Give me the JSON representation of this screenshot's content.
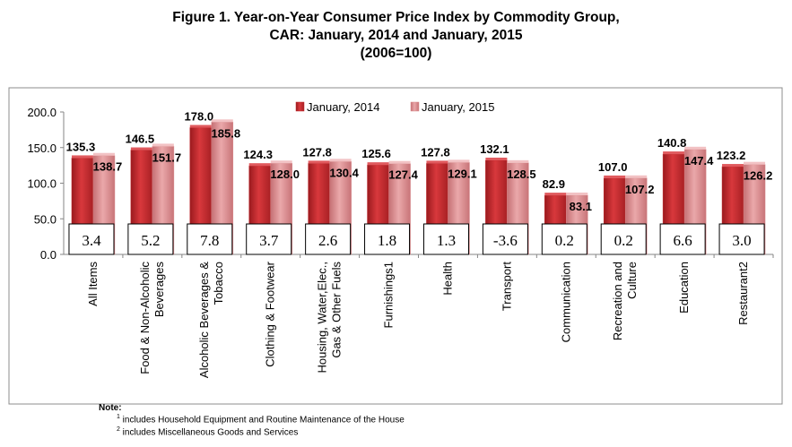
{
  "title_lines": [
    "Figure 1. Year-on-Year Consumer Price Index by Commodity Group,",
    "CAR: January, 2014 and January, 2015",
    "(2006=100)"
  ],
  "colors": {
    "series_2014": "#c0282c",
    "series_2015": "#d98a8c"
  },
  "chart_data": {
    "type": "bar",
    "title": "Figure 1. Year-on-Year Consumer Price Index by Commodity Group, CAR: January, 2014 and January, 2015 (2006=100)",
    "categories": [
      "All Items",
      "Food & Non-Alcoholic Beverages",
      "Alcoholic Beverages & Tobacco",
      "Clothing & Footwear",
      "Housing, Water,Elec., Gas & Other Fuels",
      "Furnishings1",
      "Health",
      "Transport",
      "Communication",
      "Recreation and Culture",
      "Education",
      "Restaurant2"
    ],
    "category_lines": [
      [
        "All Items"
      ],
      [
        "Food & Non-Alcoholic",
        "Beverages"
      ],
      [
        "Alcoholic Beverages &",
        "Tobacco"
      ],
      [
        "Clothing & Footwear"
      ],
      [
        "Housing, Water,Elec.,",
        "Gas & Other Fuels"
      ],
      [
        "Furnishings1"
      ],
      [
        "Health"
      ],
      [
        "Transport"
      ],
      [
        "Communication"
      ],
      [
        "Recreation and",
        "Culture"
      ],
      [
        "Education"
      ],
      [
        "Restaurant2"
      ]
    ],
    "series": [
      {
        "name": "January, 2014",
        "values": [
          135.3,
          146.5,
          178.0,
          124.3,
          127.8,
          125.6,
          127.8,
          132.1,
          82.9,
          107.0,
          140.8,
          123.2
        ]
      },
      {
        "name": "January, 2015",
        "values": [
          138.7,
          151.7,
          185.8,
          128.0,
          130.4,
          127.4,
          129.1,
          128.5,
          83.1,
          107.2,
          147.4,
          126.2
        ]
      }
    ],
    "value_labels": [
      [
        "135.3",
        "146.5",
        "178.0",
        "124.3",
        "127.8",
        "125.6",
        "127.8",
        "132.1",
        "82.9",
        "107.0",
        "140.8",
        "123.2"
      ],
      [
        "138.7",
        "151.7",
        "185.8",
        "128.0",
        "130.4",
        "127.4",
        "129.1",
        "128.5",
        "83.1",
        "107.2",
        "147.4",
        "126.2"
      ]
    ],
    "inflation_rates": [
      "3.4",
      "5.2",
      "7.8",
      "3.7",
      "2.6",
      "1.8",
      "1.3",
      "-3.6",
      "0.2",
      "0.2",
      "6.6",
      "3.0"
    ],
    "yticks": [
      "0.0",
      "50.0",
      "100.0",
      "150.0",
      "200.0"
    ],
    "ylim": [
      0,
      200
    ],
    "grid": false,
    "legend_position": "top-right"
  },
  "notes": {
    "heading": "Note:",
    "lines": [
      {
        "mark": "1",
        "text": " includes Household Equipment and Routine Maintenance of the House"
      },
      {
        "mark": "2",
        "text": " includes Miscellaneous Goods and Services"
      }
    ]
  }
}
